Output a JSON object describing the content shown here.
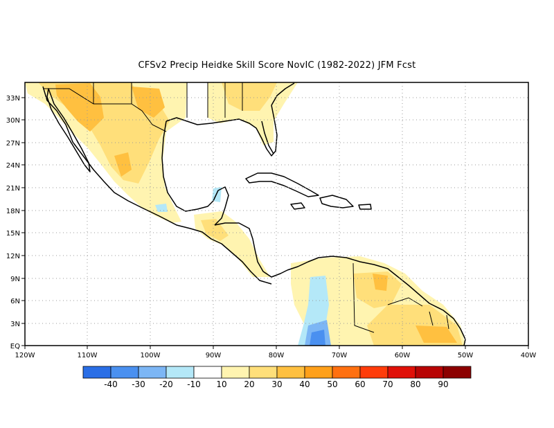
{
  "title": "CFSv2 Precip Heidke Skill Score NovIC (1982-2022) JFM Fcst",
  "lon_labels": [
    "120W",
    "110W",
    "100W",
    "90W",
    "80W",
    "70W",
    "60W",
    "50W",
    "40W"
  ],
  "lat_labels": [
    "EQ",
    "3N",
    "6N",
    "9N",
    "12N",
    "15N",
    "18N",
    "21N",
    "24N",
    "27N",
    "30N",
    "33N"
  ],
  "colorbar": {
    "colors": [
      "#2a6ee6",
      "#4a90f0",
      "#7cb6f5",
      "#b4e8f8",
      "#ffffff",
      "#fff4b0",
      "#ffdf7a",
      "#ffc040",
      "#ffa01a",
      "#ff7010",
      "#ff3c0a",
      "#e01008",
      "#b80404",
      "#8c0000"
    ],
    "labels": [
      "-40",
      "-30",
      "-20",
      "-10",
      "10",
      "20",
      "30",
      "40",
      "50",
      "60",
      "70",
      "80",
      "90"
    ]
  },
  "map": {
    "lon_range": [
      -120,
      -40
    ],
    "lat_range": [
      0,
      35
    ],
    "grid": "dotted"
  }
}
